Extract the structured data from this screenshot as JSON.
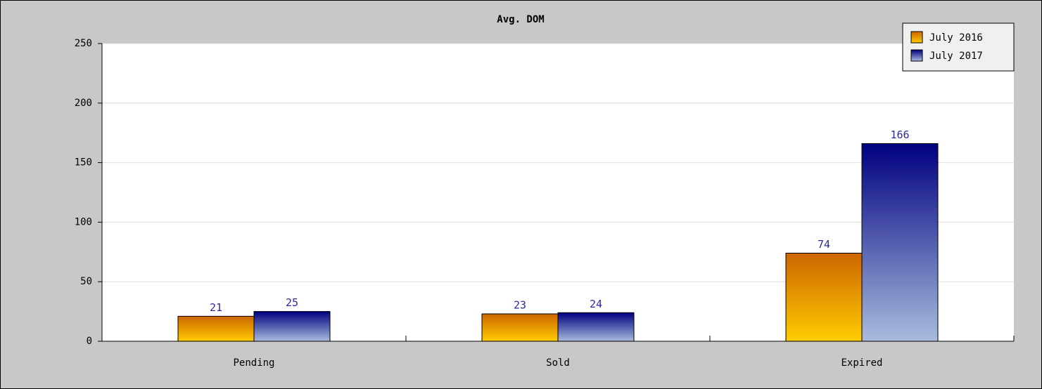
{
  "chart_data": {
    "type": "bar",
    "title": "Avg. DOM",
    "categories": [
      "Pending",
      "Sold",
      "Expired"
    ],
    "series": [
      {
        "name": "July 2016",
        "color": "#cc6600",
        "gradient_to": "#ffcc00",
        "values": [
          21,
          23,
          74
        ]
      },
      {
        "name": "July 2017",
        "color": "#000080",
        "gradient_to": "#aabbdd",
        "values": [
          25,
          24,
          166
        ]
      }
    ],
    "ylim": [
      0,
      250
    ],
    "yticks": [
      0,
      50,
      100,
      150,
      200,
      250
    ],
    "grid": true,
    "legend": "top-right"
  }
}
